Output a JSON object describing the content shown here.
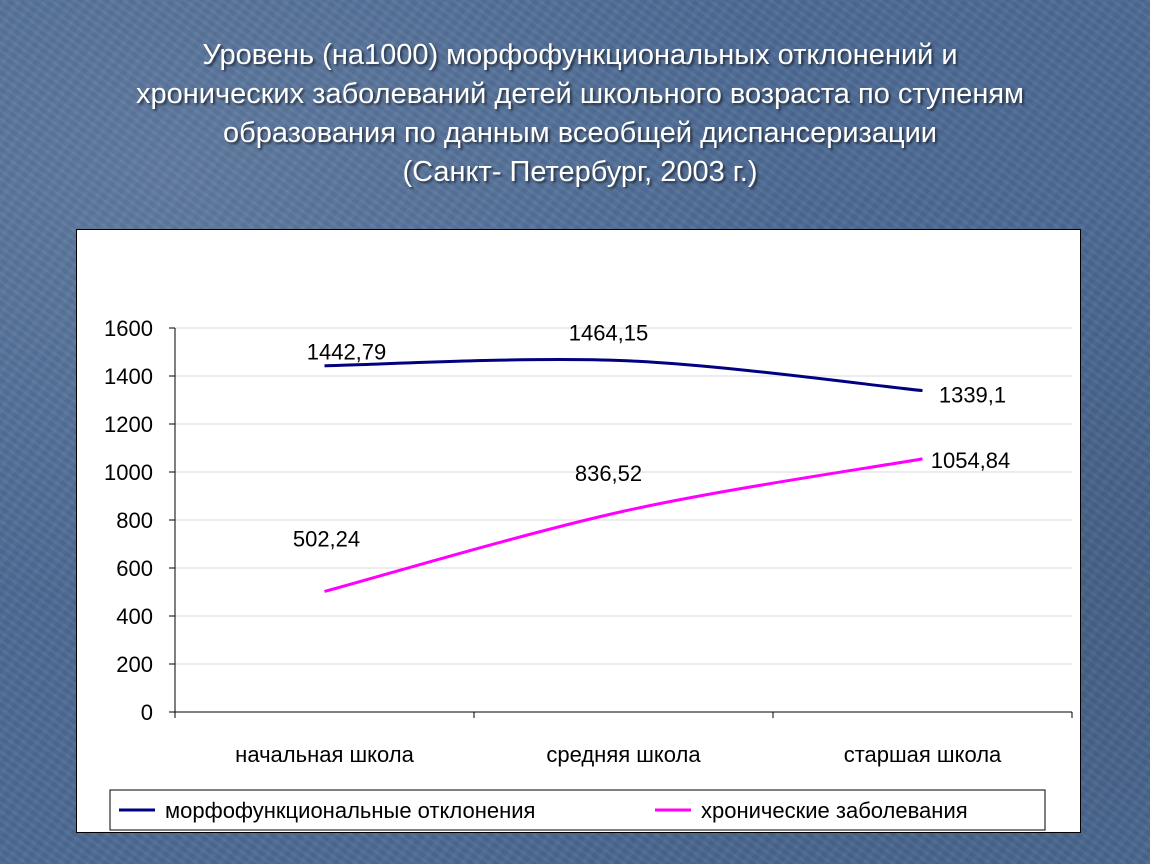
{
  "title_lines": [
    "Уровень (на1000) морфофункциональных отклонений и",
    "хронических заболеваний детей школьного возраста по ступеням",
    "образования по  данным всеобщей диспансеризации",
    "(Санкт- Петербург, 2003 г.)"
  ],
  "chart_data": {
    "type": "line",
    "title": "Уровень (на1000) морфофункциональных отклонений и хронических заболеваний детей школьного возраста по ступеням образования по  данным всеобщей диспансеризации (Санкт- Петербург, 2003 г.)",
    "categories": [
      "начальная школа",
      "средняя школа",
      "старшая школа"
    ],
    "series": [
      {
        "name": "морфофункциональные отклонения",
        "values": [
          1442.79,
          1464.15,
          1339.1
        ],
        "labels": [
          "1442,79",
          "1464,15",
          "1339,1"
        ],
        "color": "#000080"
      },
      {
        "name": "хронические заболевания",
        "values": [
          502.24,
          836.52,
          1054.84
        ],
        "labels": [
          "502,24",
          "836,52",
          "1054,84"
        ],
        "color": "#ff00ff"
      }
    ],
    "ylim": [
      0,
      1600
    ],
    "yticks": [
      0,
      200,
      400,
      600,
      800,
      1000,
      1200,
      1400,
      1600
    ],
    "smooth": true,
    "grid": true,
    "legend": "bottom"
  }
}
